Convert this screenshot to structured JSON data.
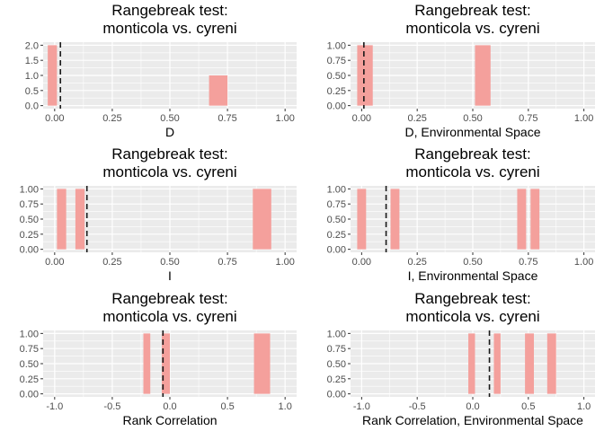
{
  "chart_data": [
    {
      "type": "bar",
      "title_lines": [
        "Rangebreak test:",
        "monticola vs. cyreni"
      ],
      "xlabel": "D",
      "xlim": [
        -0.05,
        1.05
      ],
      "ylim": [
        -0.1,
        2.1
      ],
      "xticks": [
        0.0,
        0.25,
        0.5,
        0.75,
        1.0
      ],
      "xtick_labels": [
        "0.00",
        "0.25",
        "0.50",
        "0.75",
        "1.00"
      ],
      "yticks": [
        0.0,
        0.5,
        1.0,
        1.5,
        2.0
      ],
      "ytick_labels": [
        "0.0",
        "0.5",
        "1.0",
        "1.5",
        "2.0"
      ],
      "bars": [
        {
          "x0": -0.03,
          "x1": 0.01,
          "count": 2
        },
        {
          "x0": 0.67,
          "x1": 0.75,
          "count": 1
        }
      ],
      "empirical_value": 0.025,
      "bar_color": "#f4a09c",
      "panel_background": "#ebebeb",
      "grid": true
    },
    {
      "type": "bar",
      "title_lines": [
        "Rangebreak test:",
        "monticola vs. cyreni"
      ],
      "xlabel": "D, Environmental Space",
      "xlim": [
        -0.05,
        1.05
      ],
      "ylim": [
        -0.05,
        1.05
      ],
      "xticks": [
        0.0,
        0.25,
        0.5,
        0.75,
        1.0
      ],
      "xtick_labels": [
        "0.00",
        "0.25",
        "0.50",
        "0.75",
        "1.00"
      ],
      "yticks": [
        0.0,
        0.25,
        0.5,
        0.75,
        1.0
      ],
      "ytick_labels": [
        "0.00",
        "0.25",
        "0.50",
        "0.75",
        "1.00"
      ],
      "bars": [
        {
          "x0": -0.02,
          "x1": 0.05,
          "count": 1
        },
        {
          "x0": 0.51,
          "x1": 0.58,
          "count": 1
        }
      ],
      "empirical_value": 0.01,
      "bar_color": "#f4a09c",
      "panel_background": "#ebebeb",
      "grid": true
    },
    {
      "type": "bar",
      "title_lines": [
        "Rangebreak test:",
        "monticola vs. cyreni"
      ],
      "xlabel": "I",
      "xlim": [
        -0.05,
        1.05
      ],
      "ylim": [
        -0.05,
        1.05
      ],
      "xticks": [
        0.0,
        0.25,
        0.5,
        0.75,
        1.0
      ],
      "xtick_labels": [
        "0.00",
        "0.25",
        "0.50",
        "0.75",
        "1.00"
      ],
      "yticks": [
        0.0,
        0.25,
        0.5,
        0.75,
        1.0
      ],
      "ytick_labels": [
        "0.00",
        "0.25",
        "0.50",
        "0.75",
        "1.00"
      ],
      "bars": [
        {
          "x0": 0.01,
          "x1": 0.05,
          "count": 1
        },
        {
          "x0": 0.09,
          "x1": 0.13,
          "count": 1
        },
        {
          "x0": 0.86,
          "x1": 0.94,
          "count": 1
        }
      ],
      "empirical_value": 0.14,
      "bar_color": "#f4a09c",
      "panel_background": "#ebebeb",
      "grid": true
    },
    {
      "type": "bar",
      "title_lines": [
        "Rangebreak test:",
        "monticola vs. cyreni"
      ],
      "xlabel": "I, Environmental Space",
      "xlim": [
        -0.05,
        1.05
      ],
      "ylim": [
        -0.05,
        1.05
      ],
      "xticks": [
        0.0,
        0.25,
        0.5,
        0.75,
        1.0
      ],
      "xtick_labels": [
        "0.00",
        "0.25",
        "0.50",
        "0.75",
        "1.00"
      ],
      "yticks": [
        0.0,
        0.25,
        0.5,
        0.75,
        1.0
      ],
      "ytick_labels": [
        "0.00",
        "0.25",
        "0.50",
        "0.75",
        "1.00"
      ],
      "bars": [
        {
          "x0": -0.02,
          "x1": 0.02,
          "count": 1
        },
        {
          "x0": 0.13,
          "x1": 0.17,
          "count": 1
        },
        {
          "x0": 0.7,
          "x1": 0.74,
          "count": 1
        },
        {
          "x0": 0.76,
          "x1": 0.8,
          "count": 1
        }
      ],
      "empirical_value": 0.11,
      "bar_color": "#f4a09c",
      "panel_background": "#ebebeb",
      "grid": true
    },
    {
      "type": "bar",
      "title_lines": [
        "Rangebreak test:",
        "monticola vs. cyreni"
      ],
      "xlabel": "Rank Correlation",
      "xlim": [
        -1.1,
        1.1
      ],
      "ylim": [
        -0.05,
        1.05
      ],
      "xticks": [
        -1.0,
        -0.5,
        0.0,
        0.5,
        1.0
      ],
      "xtick_labels": [
        "-1.0",
        "-0.5",
        "0.0",
        "0.5",
        "1.0"
      ],
      "yticks": [
        0.0,
        0.25,
        0.5,
        0.75,
        1.0
      ],
      "ytick_labels": [
        "0.00",
        "0.25",
        "0.50",
        "0.75",
        "1.00"
      ],
      "bars": [
        {
          "x0": -0.23,
          "x1": -0.17,
          "count": 1
        },
        {
          "x0": -0.07,
          "x1": 0.0,
          "count": 1
        },
        {
          "x0": 0.73,
          "x1": 0.87,
          "count": 1
        }
      ],
      "empirical_value": -0.06,
      "bar_color": "#f4a09c",
      "panel_background": "#ebebeb",
      "grid": true
    },
    {
      "type": "bar",
      "title_lines": [
        "Rangebreak test:",
        "monticola vs. cyreni"
      ],
      "xlabel": "Rank Correlation, Environmental Space",
      "xlim": [
        -1.1,
        1.1
      ],
      "ylim": [
        -0.05,
        1.05
      ],
      "xticks": [
        -1.0,
        -0.5,
        0.0,
        0.5,
        1.0
      ],
      "xtick_labels": [
        "-1.0",
        "-0.5",
        "0.0",
        "0.5",
        "1.0"
      ],
      "yticks": [
        0.0,
        0.25,
        0.5,
        0.75,
        1.0
      ],
      "ytick_labels": [
        "0.00",
        "0.25",
        "0.50",
        "0.75",
        "1.00"
      ],
      "bars": [
        {
          "x0": -0.04,
          "x1": 0.02,
          "count": 1
        },
        {
          "x0": 0.19,
          "x1": 0.25,
          "count": 1
        },
        {
          "x0": 0.47,
          "x1": 0.55,
          "count": 1
        },
        {
          "x0": 0.67,
          "x1": 0.75,
          "count": 1
        }
      ],
      "empirical_value": 0.15,
      "bar_color": "#f4a09c",
      "panel_background": "#ebebeb",
      "grid": true
    }
  ]
}
